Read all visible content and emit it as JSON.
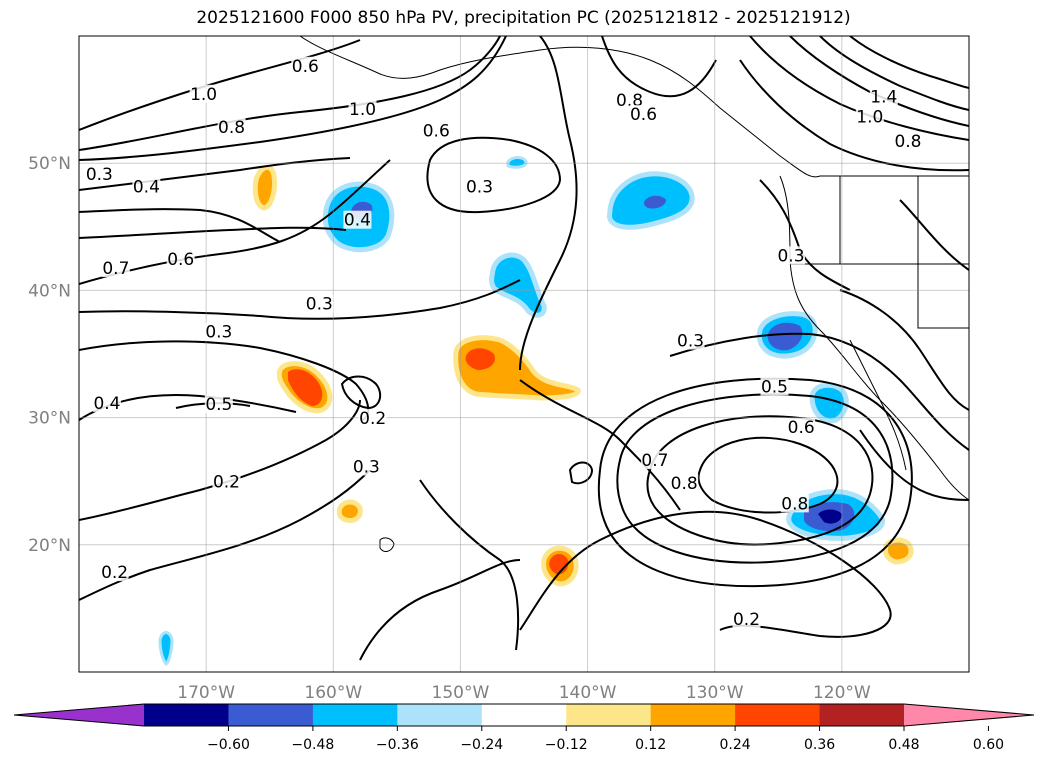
{
  "title": "2025121600 F000 850 hPa PV, precipitation PC (2025121812 - 2025121912)",
  "map": {
    "lon_range": [
      -180,
      -110
    ],
    "lat_range": [
      10,
      60
    ],
    "lat_ticks": [
      {
        "value": 20,
        "label": "20°N"
      },
      {
        "value": 30,
        "label": "30°N"
      },
      {
        "value": 40,
        "label": "40°N"
      },
      {
        "value": 50,
        "label": "50°N"
      }
    ],
    "lon_ticks": [
      {
        "value": -170,
        "label": "170°W"
      },
      {
        "value": -160,
        "label": "160°W"
      },
      {
        "value": -150,
        "label": "150°W"
      },
      {
        "value": -140,
        "label": "140°W"
      },
      {
        "value": -130,
        "label": "130°W"
      },
      {
        "value": -120,
        "label": "120°W"
      }
    ],
    "gridlines": true,
    "contour_labels": [
      {
        "text": "1.0",
        "lon": -170.2,
        "lat": 55.3
      },
      {
        "text": "0.8",
        "lon": -168.0,
        "lat": 52.7
      },
      {
        "text": "0.6",
        "lon": -162.2,
        "lat": 57.5
      },
      {
        "text": "1.0",
        "lon": -157.7,
        "lat": 54.1
      },
      {
        "text": "0.6",
        "lon": -151.9,
        "lat": 52.4
      },
      {
        "text": "0.8",
        "lon": -136.7,
        "lat": 54.8
      },
      {
        "text": "0.6",
        "lon": -135.6,
        "lat": 53.7
      },
      {
        "text": "1.4",
        "lon": -116.7,
        "lat": 55.1
      },
      {
        "text": "1.0",
        "lon": -117.8,
        "lat": 53.5
      },
      {
        "text": "0.8",
        "lon": -114.8,
        "lat": 51.6
      },
      {
        "text": "0.3",
        "lon": -178.4,
        "lat": 49.0
      },
      {
        "text": "0.4",
        "lon": -174.7,
        "lat": 48.0
      },
      {
        "text": "0.4",
        "lon": -158.1,
        "lat": 45.4
      },
      {
        "text": "0.3",
        "lon": -148.5,
        "lat": 48.0
      },
      {
        "text": "0.7",
        "lon": -177.1,
        "lat": 41.6
      },
      {
        "text": "0.6",
        "lon": -172.0,
        "lat": 42.3
      },
      {
        "text": "0.3",
        "lon": -124.0,
        "lat": 42.6
      },
      {
        "text": "0.3",
        "lon": -161.1,
        "lat": 38.8
      },
      {
        "text": "0.3",
        "lon": -169.0,
        "lat": 36.6
      },
      {
        "text": "0.3",
        "lon": -131.9,
        "lat": 35.9
      },
      {
        "text": "0.4",
        "lon": -177.8,
        "lat": 31.0
      },
      {
        "text": "0.5",
        "lon": -169.0,
        "lat": 30.9
      },
      {
        "text": "0.2",
        "lon": -156.9,
        "lat": 29.8
      },
      {
        "text": "0.5",
        "lon": -125.3,
        "lat": 32.3
      },
      {
        "text": "0.6",
        "lon": -123.2,
        "lat": 29.1
      },
      {
        "text": "0.3",
        "lon": -157.4,
        "lat": 26.0
      },
      {
        "text": "0.7",
        "lon": -134.7,
        "lat": 26.5
      },
      {
        "text": "0.8",
        "lon": -132.4,
        "lat": 24.7
      },
      {
        "text": "0.8",
        "lon": -123.7,
        "lat": 23.1
      },
      {
        "text": "0.2",
        "lon": -168.4,
        "lat": 24.8
      },
      {
        "text": "0.2",
        "lon": -177.2,
        "lat": 17.7
      },
      {
        "text": "0.2",
        "lon": -127.5,
        "lat": 14.0
      }
    ]
  },
  "colorbar": {
    "colors": [
      "#9932cc",
      "#00008b",
      "#3b5bd2",
      "#00bfff",
      "#ade3fa",
      "#ffffff",
      "#fde68a",
      "#ffa500",
      "#ff4500",
      "#b22222",
      "#ff88aa"
    ],
    "tick_labels": [
      "−0.60",
      "−0.48",
      "−0.36",
      "−0.24",
      "−0.12",
      "0.12",
      "0.24",
      "0.36",
      "0.48",
      "0.60"
    ]
  }
}
